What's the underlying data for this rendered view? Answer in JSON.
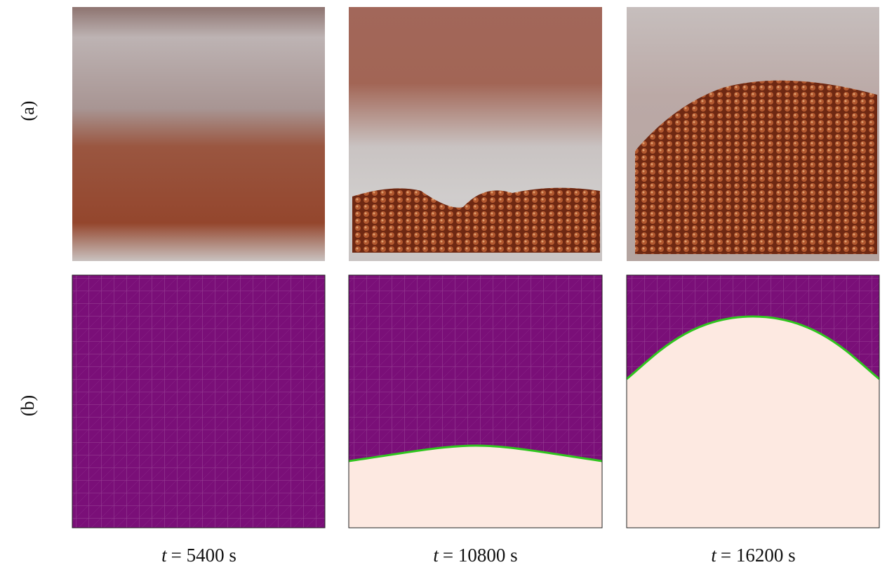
{
  "row_labels": [
    "(a)",
    "(b)"
  ],
  "captions": [
    {
      "symbol": "t",
      "text": "= 5400 s"
    },
    {
      "symbol": "t",
      "text": "= 10800 s"
    },
    {
      "symbol": "t",
      "text": "= 16200 s"
    }
  ]
}
